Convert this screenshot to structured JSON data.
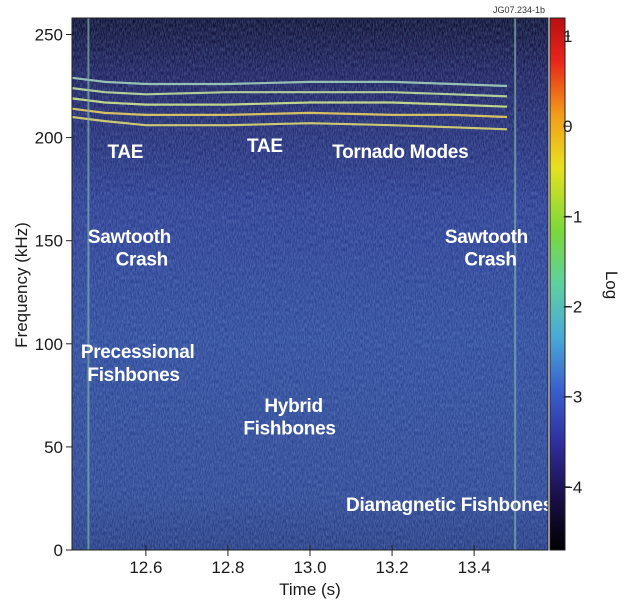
{
  "figure_id": "JG07.234-1b",
  "chart_data": {
    "type": "heatmap",
    "xlabel": "Time (s)",
    "ylabel": "Frequency (kHz)",
    "colorbar_label": "Log",
    "xlim": [
      12.42,
      13.58
    ],
    "ylim": [
      0,
      258
    ],
    "xticks": [
      12.6,
      12.8,
      13.0,
      13.2,
      13.4
    ],
    "yticks": [
      0,
      50,
      100,
      150,
      200,
      250
    ],
    "colorbar_ticks": [
      -4,
      -3,
      -2,
      -1,
      0,
      1
    ],
    "colorbar_range": [
      -4.7,
      1.2
    ],
    "colormap": [
      "#000000",
      "#1a0f4a",
      "#2e2e9c",
      "#3a5fcc",
      "#4aa8d8",
      "#5fd0a0",
      "#7ad83a",
      "#e8e020",
      "#f39a1a",
      "#e8241a",
      "#b81010"
    ],
    "sawtooth_crash_times": [
      12.46,
      13.5
    ],
    "tae_frequency_bands": [
      {
        "x": [
          12.42,
          12.5,
          12.6,
          12.8,
          13.0,
          13.2,
          13.35,
          13.48
        ],
        "y": [
          210,
          208,
          206,
          206,
          207,
          206,
          205,
          204
        ]
      },
      {
        "x": [
          12.42,
          12.5,
          12.6,
          12.8,
          13.0,
          13.2,
          13.35,
          13.48
        ],
        "y": [
          214,
          212,
          211,
          211,
          212,
          211,
          211,
          210
        ]
      },
      {
        "x": [
          12.42,
          12.5,
          12.6,
          12.8,
          13.0,
          13.2,
          13.35,
          13.48
        ],
        "y": [
          219,
          217,
          216,
          216,
          217,
          217,
          216,
          215
        ]
      },
      {
        "x": [
          12.42,
          12.5,
          12.6,
          12.8,
          13.0,
          13.2,
          13.35,
          13.48
        ],
        "y": [
          224,
          222,
          221,
          222,
          222,
          222,
          221,
          220
        ]
      },
      {
        "x": [
          12.42,
          12.5,
          12.6,
          12.8,
          13.0,
          13.2,
          13.35,
          13.48
        ],
        "y": [
          229,
          227,
          226,
          226,
          227,
          227,
          226,
          225
        ]
      }
    ],
    "annotations": [
      {
        "text": "TAE",
        "x": 12.55,
        "y": 190
      },
      {
        "text": "TAE",
        "x": 12.89,
        "y": 193
      },
      {
        "text": "Tornado Modes",
        "x": 13.22,
        "y": 190
      },
      {
        "text": "Sawtooth",
        "x": 12.56,
        "y": 149
      },
      {
        "text": "Crash",
        "x": 12.59,
        "y": 138
      },
      {
        "text": "Sawtooth",
        "x": 13.43,
        "y": 149
      },
      {
        "text": "Crash",
        "x": 13.44,
        "y": 138
      },
      {
        "text": "Precessional",
        "x": 12.58,
        "y": 93
      },
      {
        "text": "Fishbones",
        "x": 12.57,
        "y": 82
      },
      {
        "text": "Hybrid",
        "x": 12.96,
        "y": 67
      },
      {
        "text": "Fishbones",
        "x": 12.95,
        "y": 56
      },
      {
        "text": "Diamagnetic Fishbones",
        "x": 13.34,
        "y": 19
      }
    ]
  }
}
